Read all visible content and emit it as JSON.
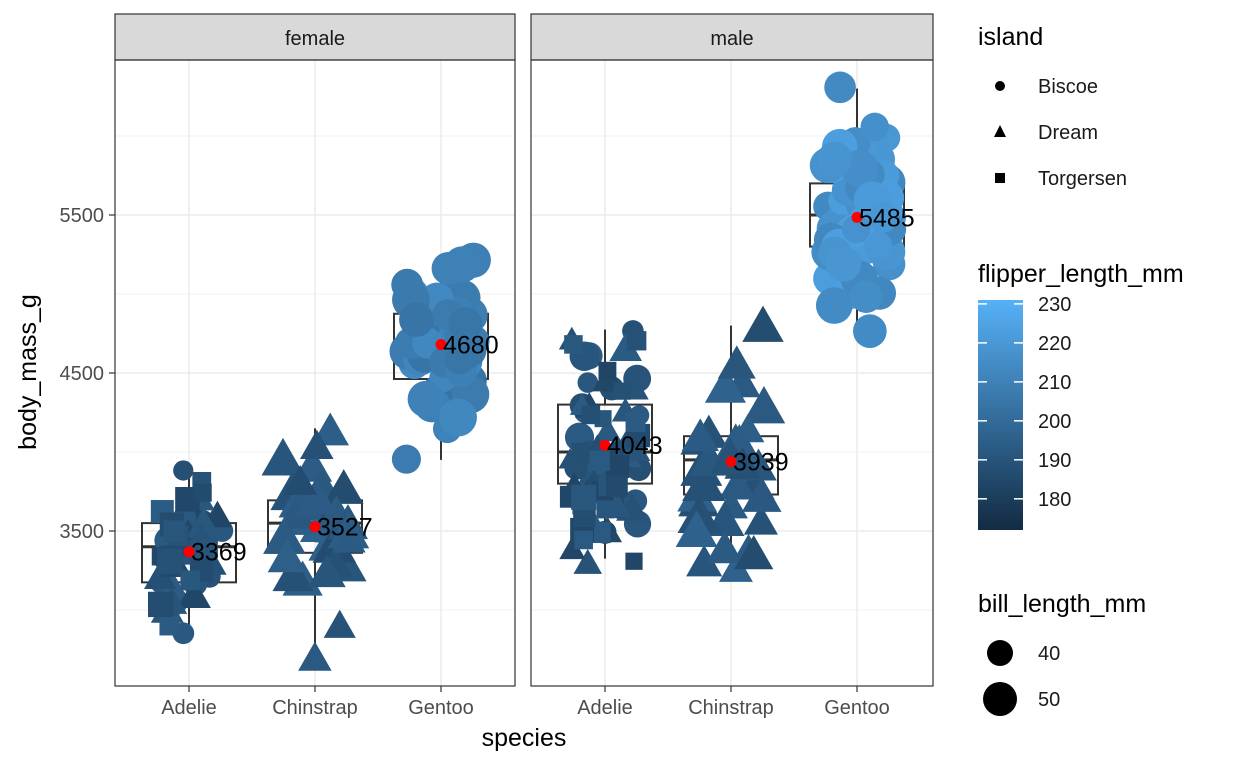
{
  "chart_data": {
    "type": "scatter",
    "subtype": "faceted jitter scatter with boxplots and mean labels",
    "xlabel": "species",
    "ylabel": "body_mass_g",
    "categories": [
      "Adelie",
      "Chinstrap",
      "Gentoo"
    ],
    "yticks": [
      3500,
      4500,
      5500
    ],
    "ylim": [
      2650,
      6400
    ],
    "grid": true,
    "facets": [
      {
        "name": "female",
        "boxes": [
          {
            "species": "Adelie",
            "q1": 3175,
            "median": 3400,
            "q3": 3550,
            "lower_whisker": 2850,
            "upper_whisker": 3900,
            "mean": 3369,
            "mean_label": "3369"
          },
          {
            "species": "Chinstrap",
            "q1": 3362,
            "median": 3550,
            "q3": 3694,
            "lower_whisker": 2700,
            "upper_whisker": 4150,
            "mean": 3527,
            "mean_label": "3527"
          },
          {
            "species": "Gentoo",
            "q1": 4462,
            "median": 4700,
            "q3": 4875,
            "lower_whisker": 3950,
            "upper_whisker": 5200,
            "mean": 4680,
            "mean_label": "4680"
          }
        ]
      },
      {
        "name": "male",
        "boxes": [
          {
            "species": "Adelie",
            "q1": 3800,
            "median": 4000,
            "q3": 4300,
            "lower_whisker": 3325,
            "upper_whisker": 4775,
            "mean": 4043,
            "mean_label": "4043"
          },
          {
            "species": "Chinstrap",
            "q1": 3731,
            "median": 3950,
            "q3": 4100,
            "lower_whisker": 3250,
            "upper_whisker": 4800,
            "mean": 3939,
            "mean_label": "3939"
          },
          {
            "species": "Gentoo",
            "q1": 5300,
            "median": 5500,
            "q3": 5700,
            "lower_whisker": 4750,
            "upper_whisker": 6300,
            "mean": 5485,
            "mean_label": "5485"
          }
        ]
      }
    ],
    "points": [
      {
        "facet": "female",
        "species": "Adelie",
        "island": "Biscoe",
        "mass": [
          3400,
          3550,
          3300,
          3200,
          3450,
          3175,
          3050,
          2850,
          3325,
          3500,
          3600,
          3700,
          3150,
          3250,
          3900
        ]
      },
      {
        "facet": "female",
        "species": "Adelie",
        "island": "Dream",
        "mass": [
          3250,
          3400,
          3300,
          3450,
          3350,
          3500,
          3600,
          3700,
          3150,
          3000,
          3100,
          3200,
          3300,
          3400,
          3550,
          3250,
          3050,
          3450
        ]
      },
      {
        "facet": "female",
        "species": "Adelie",
        "island": "Torgersen",
        "mass": [
          3800,
          3250,
          3450,
          3625,
          3200,
          3700,
          3450,
          3325,
          3400,
          2900,
          3050,
          3300,
          3550,
          3500,
          3750
        ]
      },
      {
        "facet": "female",
        "species": "Chinstrap",
        "island": "Dream",
        "mass": [
          3500,
          3900,
          3650,
          3525,
          3725,
          3950,
          3250,
          3750,
          4150,
          3700,
          3800,
          3775,
          3700,
          4050,
          3575,
          3200,
          3400,
          3600,
          3600,
          3450,
          3200,
          2700,
          3600,
          3650,
          3400,
          3300,
          3250,
          3550,
          3700,
          3800,
          2900,
          3350,
          3500,
          3450
        ]
      },
      {
        "facet": "female",
        "species": "Gentoo",
        "island": "Biscoe",
        "mass": [
          4500,
          4450,
          4550,
          4800,
          4400,
          4650,
          4650,
          4200,
          4150,
          4800,
          5000,
          4400,
          5000,
          4600,
          4700,
          5050,
          4750,
          4850,
          4625,
          4375,
          4925,
          4850,
          4875,
          4625,
          4850,
          4975,
          4700,
          4575,
          5200,
          4700,
          4600,
          4750,
          4625,
          4725,
          4750,
          4600,
          4875,
          4950,
          4750,
          4850,
          3950,
          4300,
          4450,
          4850,
          4950,
          4600,
          4700,
          4700,
          5150,
          4550,
          4800,
          5200,
          4850,
          4500,
          4650,
          4350,
          4200,
          4575
        ]
      },
      {
        "facet": "male",
        "species": "Adelie",
        "island": "Biscoe",
        "mass": [
          3900,
          3650,
          4400,
          4600,
          3775,
          3500,
          3950,
          4300,
          4250,
          4450,
          4050,
          3550,
          4600,
          3950,
          4775,
          3900,
          4100,
          4450,
          4000,
          3900,
          4250,
          4000,
          3700
        ]
      },
      {
        "facet": "male",
        "species": "Adelie",
        "island": "Dream",
        "mass": [
          3800,
          3950,
          3650,
          4150,
          3725,
          4250,
          3650,
          4000,
          3600,
          4650,
          4100,
          3900,
          3950,
          4450,
          4300,
          4000,
          4700,
          3950,
          3300,
          3750,
          4400,
          3500,
          3400,
          3800,
          3900,
          4300
        ]
      },
      {
        "facet": "male",
        "species": "Adelie",
        "island": "Torgersen",
        "mass": [
          3750,
          3650,
          4675,
          3800,
          4400,
          4500,
          4200,
          3700,
          3500,
          3900,
          3500,
          3300,
          4250,
          3950,
          4700,
          4000,
          3800,
          4100,
          3600,
          3450,
          3650,
          4200,
          3700
        ]
      },
      {
        "facet": "male",
        "species": "Chinstrap",
        "island": "Dream",
        "mass": [
          3800,
          3950,
          3800,
          3550,
          3700,
          4450,
          4050,
          3300,
          3350,
          4100,
          3900,
          3700,
          4400,
          4300,
          4150,
          3650,
          3250,
          4050,
          3900,
          4000,
          3550,
          3600,
          4800,
          3700,
          4550,
          3775,
          3950,
          4050,
          4100,
          3400,
          3900,
          3350,
          3500,
          3950
        ]
      },
      {
        "facet": "male",
        "species": "Gentoo",
        "island": "Biscoe",
        "mass": [
          5700,
          5700,
          5400,
          5200,
          5150,
          5550,
          5850,
          6300,
          5350,
          5700,
          5050,
          5100,
          5650,
          5550,
          5250,
          5600,
          5850,
          5550,
          5950,
          5500,
          5500,
          5950,
          5000,
          5500,
          5850,
          5750,
          5400,
          5600,
          5300,
          5550,
          5400,
          5650,
          5200,
          4925,
          5250,
          5600,
          5750,
          5400,
          5800,
          5000,
          5950,
          5650,
          5800,
          5350,
          6000,
          5300,
          6050,
          5800,
          5250,
          4750,
          5100,
          5300,
          5400,
          5000,
          5450,
          5600,
          5850,
          5200,
          5400,
          5500
        ]
      }
    ],
    "legends": [
      {
        "title": "island",
        "type": "shape",
        "items": [
          {
            "label": "Biscoe",
            "shape": "circle"
          },
          {
            "label": "Dream",
            "shape": "triangle"
          },
          {
            "label": "Torgersen",
            "shape": "square"
          }
        ]
      },
      {
        "title": "flipper_length_mm",
        "type": "colorbar",
        "range": [
          172,
          231
        ],
        "ticks": [
          180,
          190,
          200,
          210,
          220,
          230
        ],
        "low_color": "#132B43",
        "high_color": "#56B1F7"
      },
      {
        "title": "bill_length_mm",
        "type": "size",
        "items": [
          {
            "label": "40",
            "value": 40
          },
          {
            "label": "50",
            "value": 50
          }
        ]
      }
    ],
    "mean_color": "#ff0000"
  }
}
